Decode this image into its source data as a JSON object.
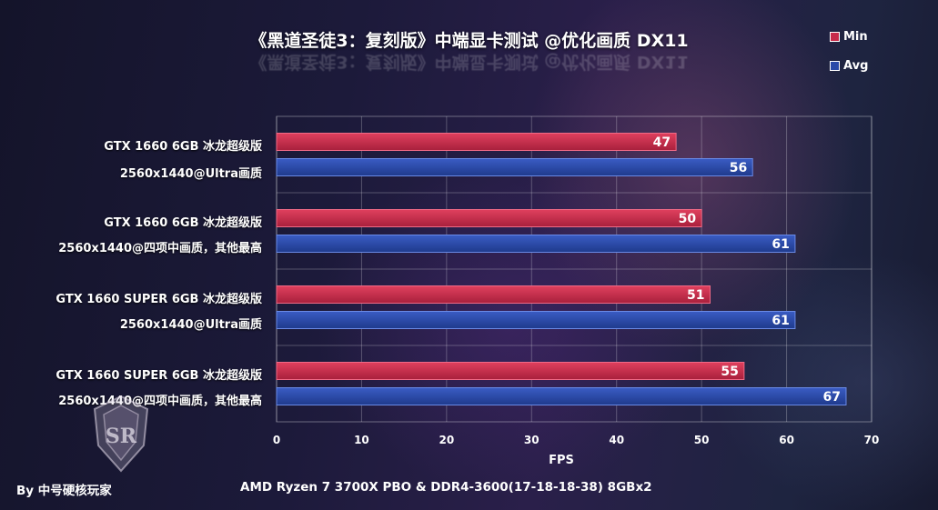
{
  "chart_data": {
    "type": "bar",
    "orientation": "horizontal",
    "title": "《黑道圣徒3：复刻版》中端显卡测试  @优化画质 DX11",
    "xlabel": "FPS",
    "ylabel": "",
    "xlim": [
      0,
      70
    ],
    "xticks": [
      0,
      10,
      20,
      30,
      40,
      50,
      60,
      70
    ],
    "grid": true,
    "legend_position": "top-right",
    "categories": [
      {
        "line1": "GTX 1660 6GB 冰龙超级版",
        "line2": "2560x1440@Ultra画质"
      },
      {
        "line1": "GTX 1660 6GB 冰龙超级版",
        "line2": "2560x1440@四项中画质，其他最高"
      },
      {
        "line1": "GTX 1660 SUPER 6GB 冰龙超级版",
        "line2": "2560x1440@Ultra画质"
      },
      {
        "line1": "GTX 1660 SUPER 6GB 冰龙超级版",
        "line2": "2560x1440@四项中画质，其他最高"
      }
    ],
    "series": [
      {
        "name": "Min",
        "color": "#c72a4a",
        "values": [
          47,
          50,
          51,
          55
        ]
      },
      {
        "name": "Avg",
        "color": "#2a4aa8",
        "values": [
          56,
          61,
          61,
          67
        ]
      }
    ]
  },
  "footer": {
    "author": "By 中号硬核玩家",
    "platform": "AMD Ryzen 7 3700X PBO & DDR4-3600(17-18-18-38) 8GBx2"
  },
  "logo": {
    "icon": "saints-row-emblem-icon",
    "text": "SR"
  }
}
